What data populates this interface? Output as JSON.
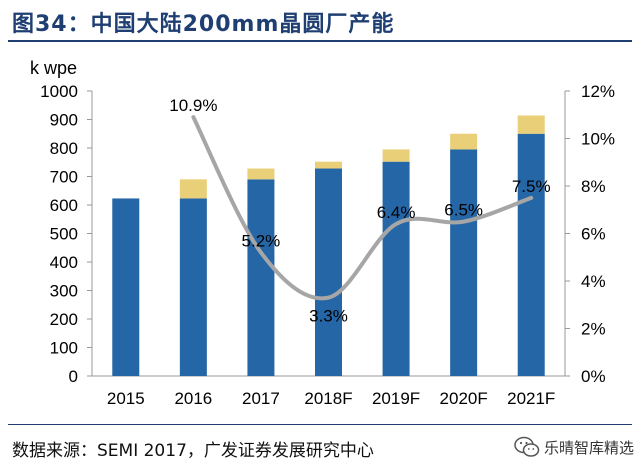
{
  "header": {
    "title": "图34：中国大陆200mm晶圆厂产能"
  },
  "footer": {
    "source": "数据来源：SEMI 2017，广发证券发展研究中心"
  },
  "watermark": {
    "text": "乐晴智库精选",
    "icon": "wechat-icon"
  },
  "chart_data": {
    "type": "bar",
    "title": "",
    "ylabel": "k wpe",
    "categories": [
      "2015",
      "2016",
      "2017",
      "2018F",
      "2019F",
      "2020F",
      "2021F"
    ],
    "ylim": [
      0,
      1000
    ],
    "y2lim": [
      0,
      12
    ],
    "yticks": [
      "0",
      "100",
      "200",
      "300",
      "400",
      "500",
      "600",
      "700",
      "800",
      "900",
      "1000"
    ],
    "y2ticks": [
      "0%",
      "2%",
      "4%",
      "6%",
      "8%",
      "10%",
      "12%"
    ],
    "series": [
      {
        "values": [
          623,
          623,
          690,
          728,
          752,
          795,
          850
        ],
        "color": "#2566a6"
      },
      {
        "values": [
          0,
          67,
          38,
          24,
          43,
          55,
          64
        ],
        "color": "#e8cf78"
      }
    ],
    "line": {
      "values": [
        null,
        10.9,
        5.2,
        3.3,
        6.4,
        6.5,
        7.5
      ],
      "labels": [
        null,
        "10.9%",
        "5.2%",
        "3.3%",
        "6.4%",
        "6.5%",
        "7.5%"
      ],
      "color": "#a6a6a6"
    },
    "grid": false,
    "legend": "none"
  }
}
